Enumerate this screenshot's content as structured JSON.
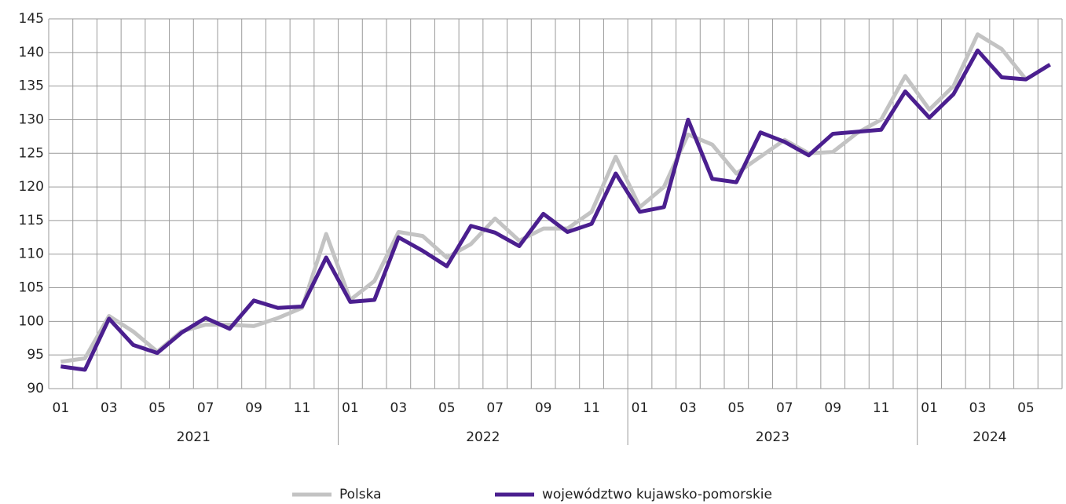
{
  "chart_data": {
    "type": "line",
    "categories": [
      "01",
      null,
      "03",
      null,
      "05",
      null,
      "07",
      null,
      "09",
      null,
      "11",
      null,
      "01",
      null,
      "03",
      null,
      "05",
      null,
      "07",
      null,
      "09",
      null,
      "11",
      null,
      "01",
      null,
      "03",
      null,
      "05",
      null,
      "07",
      null,
      "09",
      null,
      "11",
      null,
      "01",
      null,
      "03",
      null,
      "05",
      null
    ],
    "groups": [
      "2021",
      "2022",
      "2023",
      "2024"
    ],
    "series": [
      {
        "name": "Polska",
        "color": "#c3c3c3",
        "values": [
          94,
          94.5,
          100.8,
          98.5,
          95.5,
          98.5,
          99.5,
          99.5,
          99.3,
          100.5,
          102,
          113,
          103.2,
          106,
          113.3,
          112.7,
          109.5,
          111.5,
          115.3,
          112,
          113.8,
          113.8,
          116.3,
          124.5,
          117,
          120,
          127.8,
          126.3,
          122,
          124.5,
          127,
          125,
          125.2,
          128,
          130,
          136.5,
          131.5,
          135,
          142.7,
          140.5,
          136,
          null
        ]
      },
      {
        "name": "województwo kujawsko-pomorskie",
        "color": "#4b1f8f",
        "values": [
          93.3,
          92.8,
          100.4,
          96.5,
          95.3,
          98.3,
          100.5,
          98.9,
          103.1,
          102,
          102.2,
          109.5,
          102.9,
          103.2,
          112.5,
          110.5,
          108.2,
          114.2,
          113.2,
          111.2,
          116,
          113.3,
          114.5,
          122,
          116.3,
          117,
          130,
          121.2,
          120.7,
          128.1,
          126.7,
          124.7,
          127.9,
          128.2,
          128.5,
          134.2,
          130.3,
          133.8,
          140.3,
          136.3,
          136,
          138.2
        ]
      }
    ],
    "ylim": [
      90,
      145
    ],
    "yticks": [
      90,
      95,
      100,
      105,
      110,
      115,
      120,
      125,
      130,
      135,
      140,
      145
    ],
    "grid": true,
    "legend": "bottom"
  }
}
